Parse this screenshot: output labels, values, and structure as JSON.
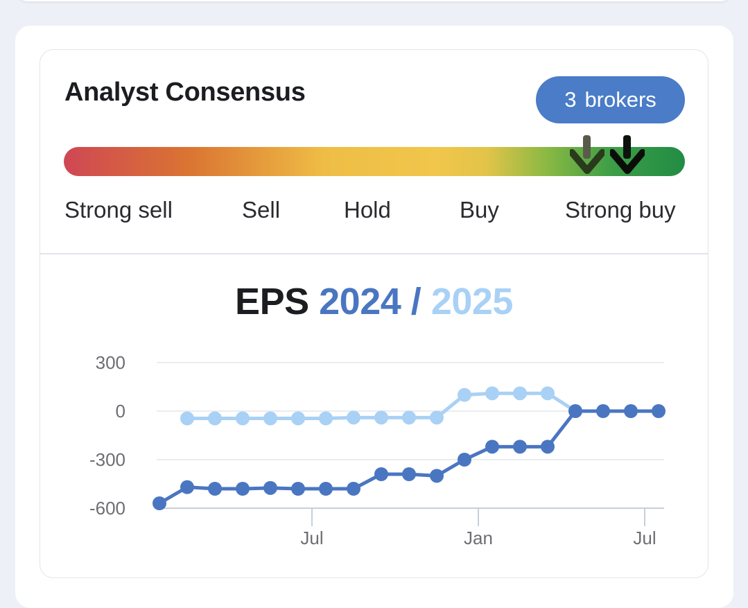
{
  "consensus": {
    "title": "Analyst Consensus",
    "broker_count": "3",
    "broker_label": "brokers",
    "scale_labels": [
      "Strong sell",
      "Sell",
      "Hold",
      "Buy",
      "Strong buy"
    ],
    "previous_rating": 4.37,
    "current_rating": 4.63,
    "scale_colors": [
      "#cf4754",
      "#da7432",
      "#efbd45",
      "#88b843",
      "#218c44"
    ]
  },
  "eps": {
    "title_prefix": "EPS",
    "year_a": "2024",
    "separator": "/",
    "year_b": "2025",
    "color_a": "#4a76c1",
    "color_b": "#a9d1f5"
  },
  "chart_data": {
    "type": "line",
    "y_ticks": [
      "300",
      "0",
      "-300",
      "-600"
    ],
    "ylim": [
      -600,
      300
    ],
    "x_ticks": [
      "Jul",
      "Jan",
      "Jul"
    ],
    "x_tick_index": [
      5.5,
      11.5,
      17.5
    ],
    "grid": true,
    "series": [
      {
        "name": "2024",
        "color": "#4a76c1",
        "values": [
          -570,
          -470,
          -480,
          -480,
          -475,
          -480,
          -480,
          -480,
          -390,
          -390,
          -400,
          -300,
          -220,
          -220,
          -220,
          0,
          0,
          0,
          0
        ]
      },
      {
        "name": "2025",
        "color": "#a9d1f5",
        "values": [
          -45,
          -45,
          -45,
          -45,
          -45,
          -45,
          -40,
          -40,
          -40,
          -40,
          100,
          110,
          110,
          110,
          0,
          0,
          0,
          0
        ]
      }
    ]
  }
}
